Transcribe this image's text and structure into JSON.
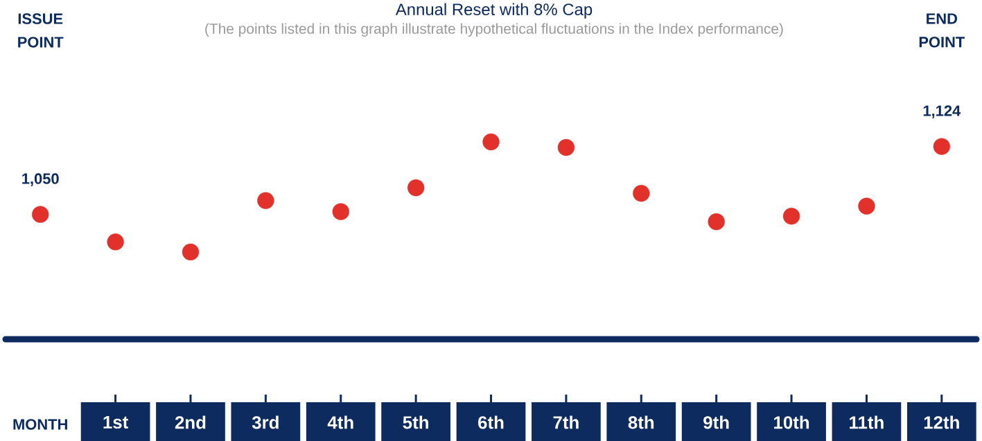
{
  "chart_data": {
    "type": "scatter",
    "title": "Annual Reset with 8% Cap",
    "subtitle": "(The points listed in this graph illustrate hypothetical fluctuations in the Index performance)",
    "xlabel": "MONTH",
    "categories": [
      null,
      "1st",
      "2nd",
      "3rd",
      "4th",
      "5th",
      "6th",
      "7th",
      "8th",
      "9th",
      "10th",
      "11th",
      "12th"
    ],
    "values": [
      1050,
      1020,
      1009,
      1065,
      1053,
      1079,
      1129,
      1123,
      1073,
      1042,
      1048,
      1059,
      1124
    ],
    "value_labels": [
      "1,050",
      null,
      null,
      null,
      null,
      null,
      null,
      null,
      null,
      null,
      null,
      null,
      "1,124"
    ],
    "tick_labels": false,
    "color": "#e2302b",
    "marker": "circle",
    "annotations": [
      "ISSUE POINT",
      "END POINT"
    ]
  }
}
